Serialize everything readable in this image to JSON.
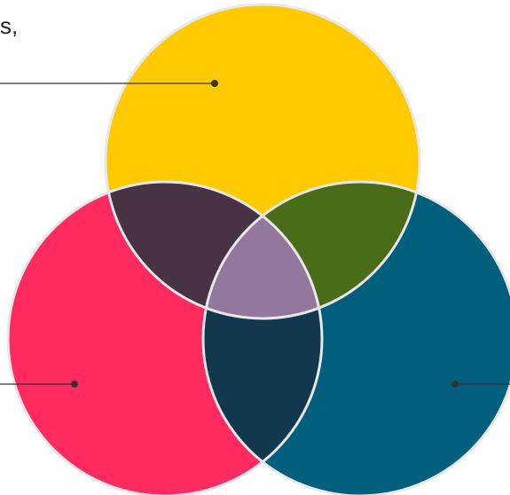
{
  "fragment_text": "s,",
  "colors": {
    "top_circle": "#FFCB00",
    "left_circle": "#FF2A5F",
    "right_circle": "#005F7C",
    "top_left_overlap": "#473343",
    "top_right_overlap": "#4A6B18",
    "left_right_overlap": "#13384D",
    "center_overlap": "#94779C",
    "outline": "#E8E8E8",
    "leader_line": "#333333"
  },
  "circles": [
    {
      "name": "top",
      "color_key": "top_circle"
    },
    {
      "name": "left",
      "color_key": "left_circle"
    },
    {
      "name": "right",
      "color_key": "right_circle"
    }
  ]
}
